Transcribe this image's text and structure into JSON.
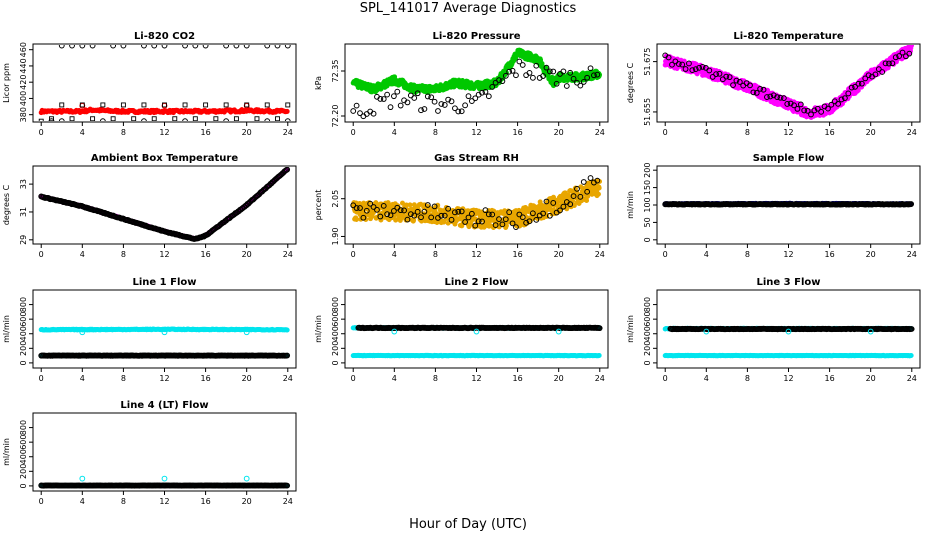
{
  "title": "SPL_141017  Average Diagnostics",
  "xlabel": "Hour of Day (UTC)",
  "chart_data": [
    {
      "type": "scatter",
      "title": "Li-820 CO2",
      "ylabel": "Licor ppm",
      "xticks": [
        0,
        4,
        8,
        12,
        16,
        20,
        24
      ],
      "yticks": [
        380,
        400,
        420,
        440,
        460
      ],
      "ylim": [
        371,
        467
      ],
      "series": [
        {
          "color": "#ff0000",
          "filled": true,
          "pattern": "flat",
          "base": 384,
          "amp": 1.5,
          "points": [
            [
              0,
              384
            ],
            [
              4,
              384
            ],
            [
              5,
              386
            ],
            [
              6,
              385
            ],
            [
              8,
              384
            ],
            [
              12,
              384
            ],
            [
              16,
              384
            ],
            [
              20,
              385
            ],
            [
              24,
              384
            ]
          ]
        },
        {
          "color": "#ff0000",
          "filled": false,
          "points": [
            [
              4,
              391
            ],
            [
              12,
              391
            ],
            [
              20,
              391
            ]
          ]
        },
        {
          "color": "#000000",
          "filled": false,
          "marker": "square",
          "points": [
            [
              0,
              372
            ],
            [
              1,
              375
            ],
            [
              2,
              392
            ],
            [
              3,
              375
            ],
            [
              4,
              392
            ],
            [
              5,
              375
            ],
            [
              6,
              392
            ],
            [
              7,
              375
            ],
            [
              8,
              392
            ],
            [
              9,
              375
            ],
            [
              10,
              392
            ],
            [
              11,
              375
            ],
            [
              12,
              392
            ],
            [
              13,
              375
            ],
            [
              14,
              392
            ],
            [
              15,
              375
            ],
            [
              16,
              392
            ],
            [
              17,
              375
            ],
            [
              18,
              392
            ],
            [
              19,
              375
            ],
            [
              20,
              392
            ],
            [
              21,
              375
            ],
            [
              22,
              392
            ],
            [
              23,
              375
            ],
            [
              24,
              392
            ]
          ]
        },
        {
          "color": "#000000",
          "filled": false,
          "points": [
            [
              1,
              372
            ],
            [
              2,
              465
            ],
            [
              3,
              465
            ],
            [
              4,
              465
            ],
            [
              5,
              465
            ],
            [
              7,
              465
            ],
            [
              8,
              465
            ],
            [
              10,
              465
            ],
            [
              11,
              465
            ],
            [
              12,
              465
            ],
            [
              14,
              465
            ],
            [
              15,
              465
            ],
            [
              16,
              465
            ],
            [
              18,
              465
            ],
            [
              19,
              465
            ],
            [
              20,
              465
            ],
            [
              22,
              465
            ],
            [
              23,
              465
            ],
            [
              24,
              465
            ],
            [
              2,
              372
            ],
            [
              6,
              372
            ],
            [
              10,
              372
            ],
            [
              14,
              372
            ],
            [
              18,
              372
            ],
            [
              22,
              372
            ],
            [
              24,
              372
            ]
          ]
        }
      ]
    },
    {
      "type": "scatter",
      "title": "Li-820 Pressure",
      "ylabel": "kPa",
      "xticks": [
        0,
        4,
        8,
        12,
        16,
        20,
        24
      ],
      "yticks": [
        72.2,
        72.35
      ],
      "ylim": [
        72.18,
        72.44
      ],
      "series": [
        {
          "color": "#00c800",
          "filled": true,
          "pattern": "noisy",
          "amp": 0.012,
          "points": [
            [
              0,
              72.31
            ],
            [
              2,
              72.29
            ],
            [
              4,
              72.32
            ],
            [
              6,
              72.29
            ],
            [
              8,
              72.29
            ],
            [
              10,
              72.31
            ],
            [
              12,
              72.3
            ],
            [
              14,
              72.31
            ],
            [
              16,
              72.41
            ],
            [
              18,
              72.39
            ],
            [
              19.5,
              72.31
            ],
            [
              20,
              72.33
            ],
            [
              22,
              72.33
            ],
            [
              24,
              72.34
            ]
          ]
        },
        {
          "color": "#000000",
          "filled": false,
          "pattern": "sparse",
          "amp": 0.03,
          "points": [
            [
              0,
              72.21
            ],
            [
              4,
              72.26
            ],
            [
              8,
              72.24
            ],
            [
              12,
              72.24
            ],
            [
              16,
              72.36
            ],
            [
              20,
              72.33
            ],
            [
              24,
              72.33
            ]
          ]
        }
      ]
    },
    {
      "type": "scatter",
      "title": "Li-820 Temperature",
      "ylabel": "degrees C",
      "xticks": [
        0,
        4,
        8,
        12,
        16,
        20,
        24
      ],
      "yticks": [
        51.655,
        51.675
      ],
      "ylim": [
        51.651,
        51.682
      ],
      "series": [
        {
          "color": "#ff00ff",
          "filled": true,
          "pattern": "noisy",
          "amp": 0.002,
          "points": [
            [
              0,
              51.6755
            ],
            [
              4,
              51.671
            ],
            [
              8,
              51.665
            ],
            [
              12,
              51.658
            ],
            [
              14,
              51.6545
            ],
            [
              16,
              51.656
            ],
            [
              20,
              51.6695
            ],
            [
              24,
              51.6805
            ]
          ]
        },
        {
          "color": "#000000",
          "filled": false,
          "pattern": "sparse",
          "amp": 0.0015,
          "points": [
            [
              0,
              51.676
            ],
            [
              4,
              51.671
            ],
            [
              8,
              51.665
            ],
            [
              12,
              51.659
            ],
            [
              14,
              51.655
            ],
            [
              16,
              51.657
            ],
            [
              20,
              51.669
            ],
            [
              24,
              51.68
            ]
          ]
        }
      ]
    },
    {
      "type": "scatter",
      "title": "Ambient Box Temperature",
      "ylabel": "degrees C",
      "xticks": [
        0,
        4,
        8,
        12,
        16,
        20,
        24
      ],
      "yticks": [
        29,
        31,
        33
      ],
      "ylim": [
        28.7,
        34.3
      ],
      "series": [
        {
          "color": "#ff00ff",
          "filled": true,
          "pattern": "flat",
          "amp": 0.03,
          "points": [
            [
              0,
              32.1
            ],
            [
              4,
              31.4
            ],
            [
              8,
              30.5
            ],
            [
              12,
              29.6
            ],
            [
              15,
              29.05
            ],
            [
              16,
              29.3
            ],
            [
              20,
              31.5
            ],
            [
              24,
              34.1
            ]
          ]
        },
        {
          "color": "#000000",
          "filled": false,
          "pattern": "flat",
          "amp": 0.03,
          "points": [
            [
              0,
              32.1
            ],
            [
              4,
              31.4
            ],
            [
              8,
              30.5
            ],
            [
              12,
              29.6
            ],
            [
              15,
              29.05
            ],
            [
              16,
              29.3
            ],
            [
              20,
              31.5
            ],
            [
              24,
              34.1
            ]
          ]
        }
      ]
    },
    {
      "type": "scatter",
      "title": "Gas Stream RH",
      "ylabel": "percent",
      "xticks": [
        0,
        4,
        8,
        12,
        16,
        20,
        24
      ],
      "yticks": [
        1.9,
        2.05
      ],
      "ylim": [
        1.87,
        2.18
      ],
      "series": [
        {
          "color": "#e8a600",
          "filled": true,
          "pattern": "noisy",
          "amp": 0.035,
          "points": [
            [
              0,
              2.0
            ],
            [
              4,
              2.0
            ],
            [
              8,
              1.99
            ],
            [
              12,
              1.97
            ],
            [
              16,
              1.97
            ],
            [
              20,
              2.03
            ],
            [
              24,
              2.1
            ]
          ]
        },
        {
          "color": "#000000",
          "filled": false,
          "pattern": "sparse",
          "amp": 0.035,
          "points": [
            [
              0,
              2.0
            ],
            [
              4,
              2.0
            ],
            [
              8,
              1.99
            ],
            [
              12,
              1.97
            ],
            [
              16,
              1.97
            ],
            [
              20,
              2.03
            ],
            [
              24,
              2.13
            ]
          ]
        }
      ]
    },
    {
      "type": "scatter",
      "title": "Sample Flow",
      "ylabel": "ml/min",
      "xticks": [
        0,
        4,
        8,
        12,
        16,
        20,
        24
      ],
      "yticks": [
        0,
        50,
        100,
        150,
        200
      ],
      "ylim": [
        -12,
        212
      ],
      "series": [
        {
          "color": "#00008b",
          "filled": true,
          "pattern": "flat",
          "amp": 1,
          "points": [
            [
              0,
              103
            ],
            [
              12,
              104
            ],
            [
              24,
              103
            ]
          ]
        },
        {
          "color": "#000000",
          "filled": false,
          "pattern": "flat",
          "amp": 1,
          "points": [
            [
              0,
              102
            ],
            [
              12,
              102
            ],
            [
              24,
              102
            ]
          ]
        }
      ]
    },
    {
      "type": "scatter",
      "title": "Line 1 Flow",
      "ylabel": "ml/min",
      "xticks": [
        0,
        4,
        8,
        12,
        16,
        20,
        24
      ],
      "yticks": [
        0,
        200,
        400,
        600,
        800
      ],
      "ylim": [
        -70,
        1000
      ],
      "series": [
        {
          "color": "#00e5ee",
          "filled": true,
          "pattern": "flat",
          "amp": 5,
          "points": [
            [
              0,
              455
            ],
            [
              12,
              460
            ],
            [
              24,
              455
            ]
          ]
        },
        {
          "color": "#00e5ee",
          "filled": false,
          "points": [
            [
              4,
              420
            ],
            [
              12,
              420
            ],
            [
              20,
              420
            ]
          ]
        },
        {
          "color": "#00e5ee",
          "filled": true,
          "pattern": "flat",
          "amp": 3,
          "points": [
            [
              0,
              100
            ],
            [
              24,
              100
            ]
          ]
        },
        {
          "color": "#000000",
          "filled": false,
          "pattern": "flat",
          "amp": 3,
          "points": [
            [
              0,
              100
            ],
            [
              24,
              100
            ]
          ]
        }
      ]
    },
    {
      "type": "scatter",
      "title": "Line 2 Flow",
      "ylabel": "ml/min",
      "xticks": [
        0,
        4,
        8,
        12,
        16,
        20,
        24
      ],
      "yticks": [
        0,
        200,
        400,
        600,
        800
      ],
      "ylim": [
        -70,
        1000
      ],
      "series": [
        {
          "color": "#00e5ee",
          "filled": true,
          "pattern": "flat",
          "amp": 3,
          "points": [
            [
              0,
              100
            ],
            [
              24,
              100
            ]
          ]
        },
        {
          "color": "#00e5ee",
          "filled": true,
          "pattern": "flat",
          "amp": 5,
          "points": [
            [
              0,
              480
            ],
            [
              24,
              480
            ]
          ]
        },
        {
          "color": "#000000",
          "filled": false,
          "pattern": "flat",
          "amp": 4,
          "points": [
            [
              0.5,
              480
            ],
            [
              24,
              480
            ]
          ]
        },
        {
          "color": "#00e5ee",
          "filled": false,
          "points": [
            [
              4,
              430
            ],
            [
              12,
              430
            ],
            [
              20,
              430
            ]
          ]
        }
      ]
    },
    {
      "type": "scatter",
      "title": "Line 3 Flow",
      "ylabel": "ml/min",
      "xticks": [
        0,
        4,
        8,
        12,
        16,
        20,
        24
      ],
      "yticks": [
        0,
        200,
        400,
        600,
        800
      ],
      "ylim": [
        -70,
        1000
      ],
      "series": [
        {
          "color": "#00e5ee",
          "filled": true,
          "pattern": "flat",
          "amp": 3,
          "points": [
            [
              0,
              100
            ],
            [
              24,
              100
            ]
          ]
        },
        {
          "color": "#00e5ee",
          "filled": true,
          "pattern": "flat",
          "amp": 5,
          "points": [
            [
              0,
              470
            ],
            [
              24,
              470
            ]
          ]
        },
        {
          "color": "#000000",
          "filled": false,
          "pattern": "flat",
          "amp": 4,
          "points": [
            [
              0.5,
              465
            ],
            [
              24,
              465
            ]
          ]
        },
        {
          "color": "#00e5ee",
          "filled": false,
          "points": [
            [
              4,
              430
            ],
            [
              12,
              430
            ],
            [
              20,
              430
            ]
          ]
        }
      ]
    },
    {
      "type": "scatter",
      "title": "Line 4 (LT) Flow",
      "ylabel": "ml/min",
      "xticks": [
        0,
        4,
        8,
        12,
        16,
        20,
        24
      ],
      "yticks": [
        0,
        200,
        400,
        600,
        800
      ],
      "ylim": [
        -70,
        1000
      ],
      "series": [
        {
          "color": "#00e5ee",
          "filled": true,
          "pattern": "flat",
          "amp": 2,
          "points": [
            [
              0,
              5
            ],
            [
              24,
              5
            ]
          ]
        },
        {
          "color": "#000000",
          "filled": false,
          "pattern": "flat",
          "amp": 2,
          "points": [
            [
              0,
              5
            ],
            [
              24,
              5
            ]
          ]
        },
        {
          "color": "#00e5ee",
          "filled": false,
          "points": [
            [
              4,
              100
            ],
            [
              12,
              100
            ],
            [
              20,
              100
            ]
          ]
        }
      ]
    }
  ]
}
